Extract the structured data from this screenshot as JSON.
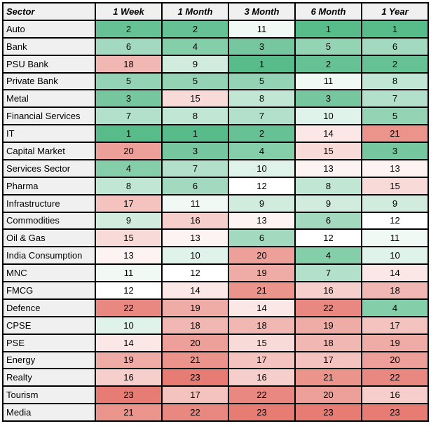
{
  "table": {
    "columns": [
      {
        "key": "sector",
        "label": "Sector"
      },
      {
        "key": "week1",
        "label": "1 Week"
      },
      {
        "key": "month1",
        "label": "1 Month"
      },
      {
        "key": "month3",
        "label": "3 Month"
      },
      {
        "key": "month6",
        "label": "6 Month"
      },
      {
        "key": "year1",
        "label": "1 Year"
      }
    ],
    "header_bg": "#F0F0F0",
    "sector_col_bg": "#F0F0F0",
    "border_color": "#000000",
    "text_color": "#000000"
  },
  "chart_data": {
    "type": "heatmap",
    "columns": [
      "1 Week",
      "1 Month",
      "3 Month",
      "6 Month",
      "1 Year"
    ],
    "rows": [
      {
        "sector": "Auto",
        "values": [
          2,
          2,
          11,
          1,
          1
        ]
      },
      {
        "sector": "Bank",
        "values": [
          6,
          4,
          3,
          5,
          6
        ]
      },
      {
        "sector": "PSU Bank",
        "values": [
          18,
          9,
          1,
          2,
          2
        ]
      },
      {
        "sector": "Private Bank",
        "values": [
          5,
          5,
          5,
          11,
          8
        ]
      },
      {
        "sector": "Metal",
        "values": [
          3,
          15,
          8,
          3,
          7
        ]
      },
      {
        "sector": "Financial Services",
        "values": [
          7,
          8,
          7,
          10,
          5
        ]
      },
      {
        "sector": "IT",
        "values": [
          1,
          1,
          2,
          14,
          21
        ]
      },
      {
        "sector": "Capital Market",
        "values": [
          20,
          3,
          4,
          15,
          3
        ]
      },
      {
        "sector": "Services Sector",
        "values": [
          4,
          7,
          10,
          13,
          13
        ]
      },
      {
        "sector": "Pharma",
        "values": [
          8,
          6,
          12,
          8,
          15
        ]
      },
      {
        "sector": "Infrastructure",
        "values": [
          17,
          11,
          9,
          9,
          9
        ]
      },
      {
        "sector": "Commodities",
        "values": [
          9,
          16,
          13,
          6,
          12
        ]
      },
      {
        "sector": "Oil & Gas",
        "values": [
          15,
          13,
          6,
          12,
          11
        ]
      },
      {
        "sector": "India Consumption",
        "values": [
          13,
          10,
          20,
          4,
          10
        ]
      },
      {
        "sector": "MNC",
        "values": [
          11,
          12,
          19,
          7,
          14
        ]
      },
      {
        "sector": "FMCG",
        "values": [
          12,
          14,
          21,
          16,
          18
        ]
      },
      {
        "sector": "Defence",
        "values": [
          22,
          19,
          14,
          22,
          4
        ]
      },
      {
        "sector": "CPSE",
        "values": [
          10,
          18,
          18,
          19,
          17
        ]
      },
      {
        "sector": "PSE",
        "values": [
          14,
          20,
          15,
          18,
          19
        ]
      },
      {
        "sector": "Energy",
        "values": [
          19,
          21,
          17,
          17,
          20
        ]
      },
      {
        "sector": "Realty",
        "values": [
          16,
          23,
          16,
          21,
          22
        ]
      },
      {
        "sector": "Tourism",
        "values": [
          23,
          17,
          22,
          20,
          16
        ]
      },
      {
        "sector": "Media",
        "values": [
          21,
          22,
          23,
          23,
          23
        ]
      }
    ],
    "color_scale": {
      "min_value": 1,
      "mid_value": 12,
      "max_value": 23,
      "min_color": "#57BB8A",
      "mid_color": "#FFFFFF",
      "max_color": "#E67C73"
    }
  }
}
